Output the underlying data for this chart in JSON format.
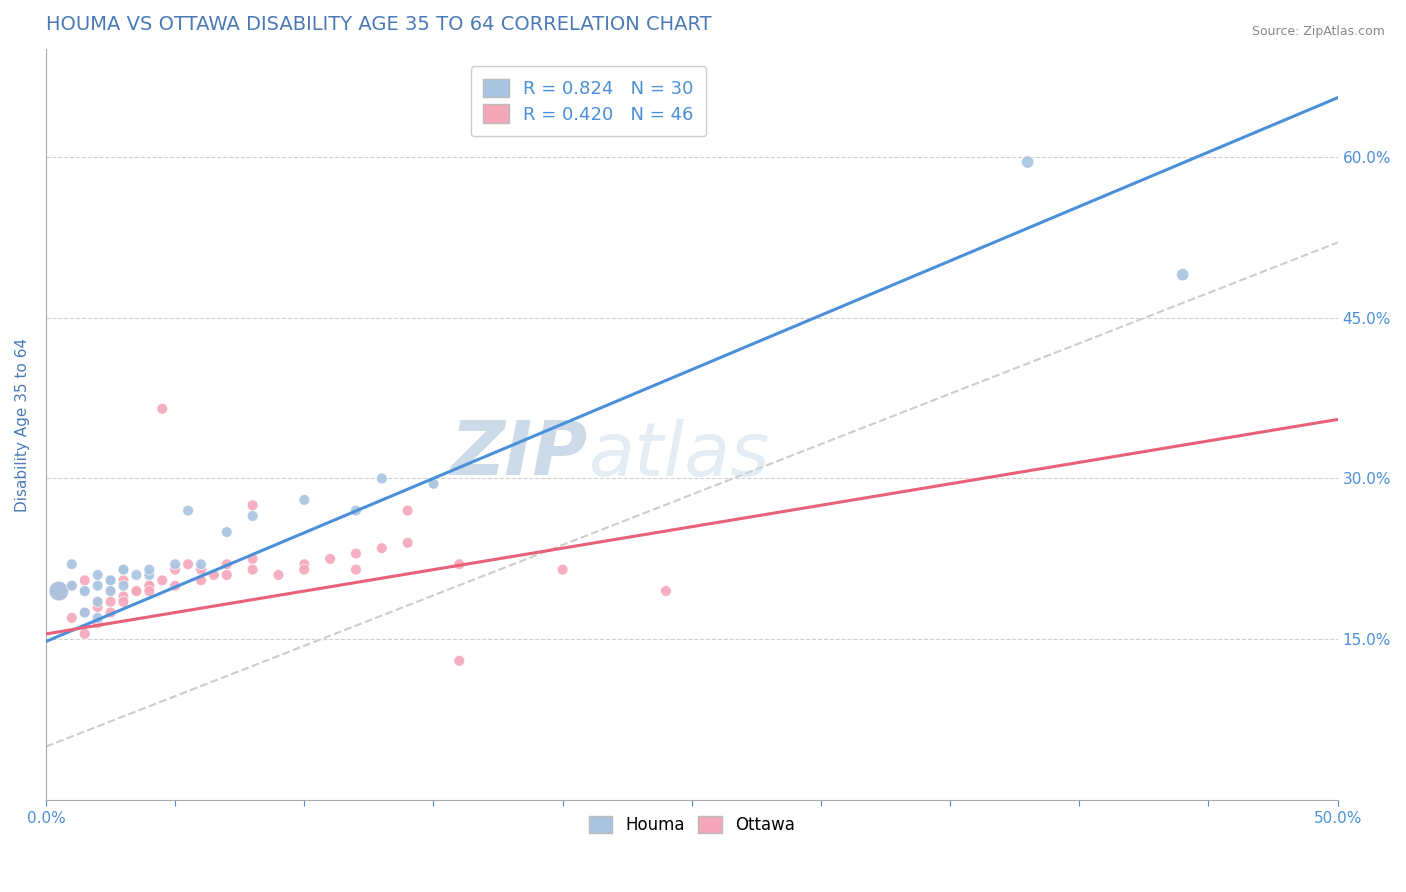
{
  "title": "HOUMA VS OTTAWA DISABILITY AGE 35 TO 64 CORRELATION CHART",
  "source_text": "Source: ZipAtlas.com",
  "ylabel": "Disability Age 35 to 64",
  "xlim": [
    0.0,
    0.5
  ],
  "ylim": [
    0.0,
    0.7
  ],
  "xticks": [
    0.0,
    0.05,
    0.1,
    0.15,
    0.2,
    0.25,
    0.3,
    0.35,
    0.4,
    0.45,
    0.5
  ],
  "yticks": [
    0.15,
    0.3,
    0.45,
    0.6
  ],
  "ytick_labels": [
    "15.0%",
    "30.0%",
    "45.0%",
    "60.0%"
  ],
  "xtick_labels": [
    "0.0%",
    "",
    "",
    "",
    "",
    "",
    "",
    "",
    "",
    "",
    "50.0%"
  ],
  "houma_color": "#a8c4e0",
  "ottawa_color": "#f4a7b9",
  "houma_R": 0.824,
  "houma_N": 30,
  "ottawa_R": 0.42,
  "ottawa_N": 46,
  "houma_line_color": "#4a90d9",
  "ottawa_line_color": "#e8607a",
  "diagonal_line_color": "#cccccc",
  "title_color": "#4a7ab5",
  "axis_label_color": "#4a7ab5",
  "tick_color": "#4a90d9",
  "watermark_zip": "ZIP",
  "watermark_atlas": "atlas",
  "houma_line_x0": 0.0,
  "houma_line_y0": 0.148,
  "houma_line_x1": 0.5,
  "houma_line_y1": 0.655,
  "ottawa_line_x0": 0.0,
  "ottawa_line_y0": 0.155,
  "ottawa_line_x1": 0.5,
  "ottawa_line_y1": 0.355,
  "houma_scatter_x": [
    0.005,
    0.01,
    0.015,
    0.02,
    0.025,
    0.03,
    0.01,
    0.015,
    0.02,
    0.025,
    0.03,
    0.035,
    0.015,
    0.02,
    0.025,
    0.03,
    0.04,
    0.05,
    0.06,
    0.07,
    0.08,
    0.1,
    0.12,
    0.13,
    0.15,
    0.02,
    0.04,
    0.055,
    0.38,
    0.44
  ],
  "houma_scatter_y": [
    0.195,
    0.2,
    0.195,
    0.21,
    0.205,
    0.215,
    0.22,
    0.195,
    0.2,
    0.205,
    0.215,
    0.21,
    0.175,
    0.185,
    0.195,
    0.2,
    0.21,
    0.22,
    0.22,
    0.25,
    0.265,
    0.28,
    0.27,
    0.3,
    0.295,
    0.17,
    0.215,
    0.27,
    0.595,
    0.49
  ],
  "houma_scatter_sizes": [
    200,
    60,
    60,
    60,
    60,
    60,
    60,
    60,
    60,
    60,
    60,
    60,
    60,
    60,
    60,
    60,
    60,
    60,
    60,
    60,
    60,
    60,
    60,
    60,
    60,
    60,
    60,
    60,
    80,
    80
  ],
  "ottawa_scatter_x": [
    0.005,
    0.01,
    0.015,
    0.02,
    0.025,
    0.03,
    0.01,
    0.015,
    0.02,
    0.025,
    0.03,
    0.035,
    0.04,
    0.015,
    0.02,
    0.025,
    0.03,
    0.035,
    0.04,
    0.045,
    0.05,
    0.055,
    0.06,
    0.065,
    0.07,
    0.08,
    0.04,
    0.05,
    0.06,
    0.07,
    0.08,
    0.09,
    0.1,
    0.11,
    0.12,
    0.13,
    0.14,
    0.045,
    0.08,
    0.1,
    0.12,
    0.14,
    0.16,
    0.24,
    0.2,
    0.16
  ],
  "ottawa_scatter_y": [
    0.195,
    0.2,
    0.205,
    0.185,
    0.195,
    0.205,
    0.17,
    0.175,
    0.18,
    0.185,
    0.19,
    0.195,
    0.2,
    0.155,
    0.165,
    0.175,
    0.185,
    0.195,
    0.2,
    0.205,
    0.215,
    0.22,
    0.215,
    0.21,
    0.22,
    0.225,
    0.195,
    0.2,
    0.205,
    0.21,
    0.215,
    0.21,
    0.22,
    0.225,
    0.23,
    0.235,
    0.24,
    0.365,
    0.275,
    0.215,
    0.215,
    0.27,
    0.22,
    0.195,
    0.215,
    0.13
  ],
  "ottawa_scatter_sizes": [
    200,
    60,
    60,
    60,
    60,
    60,
    60,
    60,
    60,
    60,
    60,
    60,
    60,
    60,
    60,
    60,
    60,
    60,
    60,
    60,
    60,
    60,
    60,
    60,
    60,
    60,
    60,
    60,
    60,
    60,
    60,
    60,
    60,
    60,
    60,
    60,
    60,
    60,
    60,
    60,
    60,
    60,
    60,
    60,
    60,
    60
  ]
}
